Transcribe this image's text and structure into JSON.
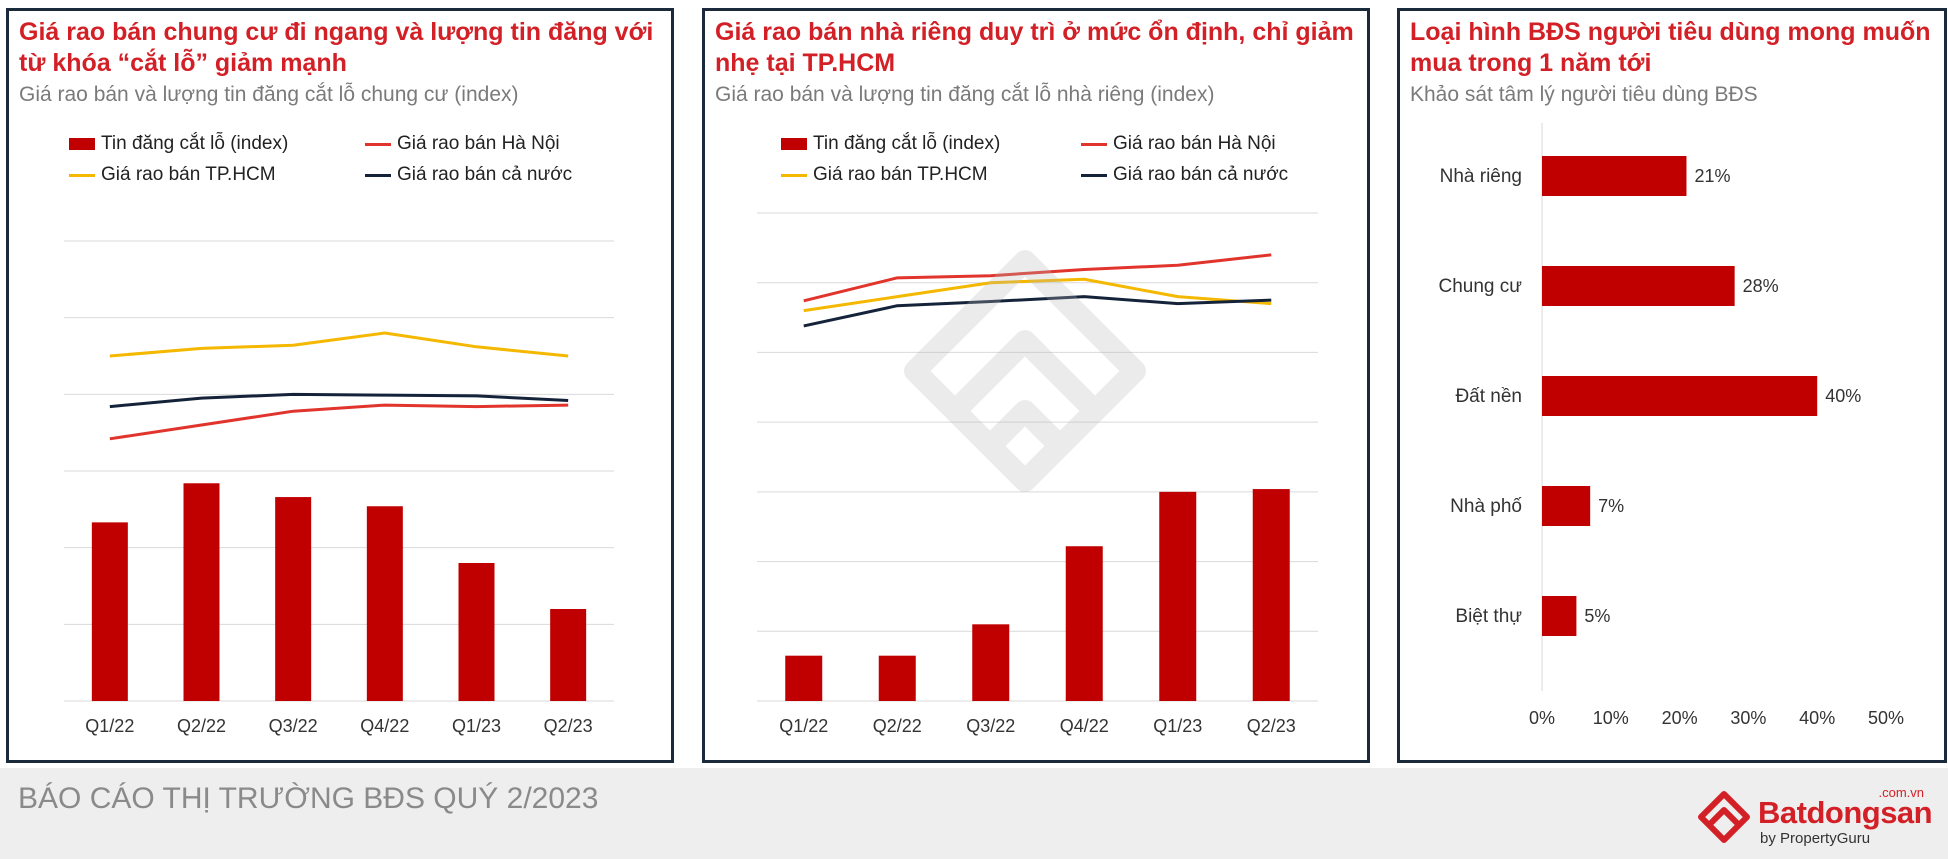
{
  "panels": [
    {
      "title": "Giá rao bán chung cư đi ngang và lượng tin đăng với từ khóa “cắt lỗ” giảm mạnh",
      "subtitle": "Giá rao bán và lượng tin đăng cắt lỗ chung cư (index)",
      "legend": [
        "Tin đăng cắt lỗ (index)",
        "Giá rao bán Hà Nội",
        "Giá rao bán TP.HCM",
        "Giá rao bán cả nước"
      ]
    },
    {
      "title": "Giá rao bán nhà riêng duy trì ở mức ổn định, chỉ giảm nhẹ tại TP.HCM",
      "subtitle": "Giá rao bán và lượng tin đăng cắt lỗ nhà riêng (index)",
      "legend": [
        "Tin đăng cắt lỗ (index)",
        "Giá rao bán Hà Nội",
        "Giá rao bán TP.HCM",
        "Giá rao bán cả nước"
      ]
    },
    {
      "title": "Loại hình BĐS người tiêu dùng mong muốn mua trong 1 năm tới",
      "subtitle": "Khảo sát tâm lý người tiêu dùng BĐS"
    }
  ],
  "chart_data": [
    {
      "type": "bar+line",
      "categories": [
        "Q1/22",
        "Q2/22",
        "Q3/22",
        "Q4/22",
        "Q1/23",
        "Q2/23"
      ],
      "ylim": [
        0,
        6
      ],
      "grid": true,
      "legend_position": "top",
      "series": [
        {
          "name": "Tin đăng cắt lỗ (index)",
          "type": "bar",
          "color": "#c00000",
          "values": [
            2.33,
            2.84,
            2.66,
            2.54,
            1.8,
            1.2
          ]
        },
        {
          "name": "Giá rao bán Hà Nội",
          "type": "line",
          "color": "#e0342c",
          "values": [
            3.42,
            3.6,
            3.78,
            3.86,
            3.84,
            3.86
          ]
        },
        {
          "name": "Giá rao bán TP.HCM",
          "type": "line",
          "color": "#f5b800",
          "values": [
            4.5,
            4.6,
            4.64,
            4.8,
            4.62,
            4.5
          ]
        },
        {
          "name": "Giá rao bán cả nước",
          "type": "line",
          "color": "#15233a",
          "values": [
            3.84,
            3.95,
            4.0,
            3.99,
            3.98,
            3.92
          ]
        }
      ]
    },
    {
      "type": "bar+line",
      "categories": [
        "Q1/22",
        "Q2/22",
        "Q3/22",
        "Q4/22",
        "Q1/23",
        "Q2/23"
      ],
      "ylim": [
        0,
        7
      ],
      "grid": true,
      "legend_position": "top",
      "series": [
        {
          "name": "Tin đăng cắt lỗ (index)",
          "type": "bar",
          "color": "#c00000",
          "values": [
            0.65,
            0.65,
            1.1,
            2.22,
            3.0,
            3.04
          ]
        },
        {
          "name": "Giá rao bán Hà Nội",
          "type": "line",
          "color": "#e0342c",
          "values": [
            5.74,
            6.07,
            6.1,
            6.19,
            6.25,
            6.4
          ]
        },
        {
          "name": "Giá rao bán TP.HCM",
          "type": "line",
          "color": "#f5b800",
          "values": [
            5.6,
            5.8,
            6.0,
            6.05,
            5.8,
            5.7
          ]
        },
        {
          "name": "Giá rao bán cả nước",
          "type": "line",
          "color": "#15233a",
          "values": [
            5.38,
            5.67,
            5.73,
            5.8,
            5.7,
            5.75
          ]
        }
      ]
    },
    {
      "type": "bar",
      "orientation": "horizontal",
      "categories": [
        "Nhà riêng",
        "Chung cư",
        "Đất nền",
        "Nhà phố",
        "Biệt thự"
      ],
      "values": [
        21,
        28,
        40,
        7,
        5
      ],
      "value_labels": [
        "21%",
        "28%",
        "40%",
        "7%",
        "5%"
      ],
      "xlim": [
        0,
        50
      ],
      "xticks": [
        "0%",
        "10%",
        "20%",
        "30%",
        "40%",
        "50%"
      ],
      "color": "#c00000"
    }
  ],
  "footer": {
    "report_title": "BÁO CÁO THỊ TRƯỜNG BĐS QUÝ 2/2023",
    "logo_name": "Batdongsan",
    "logo_domain": ".com.vn",
    "logo_by": "by PropertyGuru"
  },
  "colors": {
    "accent": "#d32027",
    "bar": "#c00000",
    "border": "#1b2a3a"
  }
}
